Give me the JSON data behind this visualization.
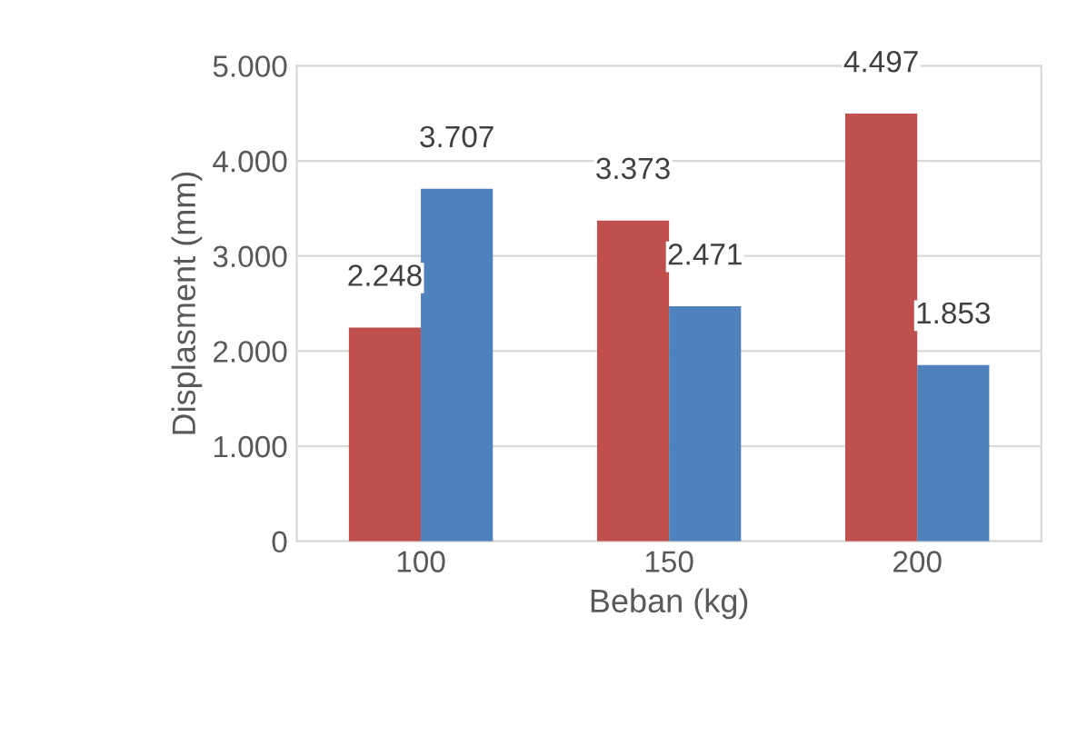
{
  "chart_data": {
    "type": "bar",
    "xlabel": "Beban (kg)",
    "ylabel": "Displasment (mm)",
    "categories": [
      "100",
      "150",
      "200"
    ],
    "series": [
      {
        "color": "#c0504d",
        "values": [
          2248,
          3373,
          4497
        ],
        "value_labels": [
          "2.248",
          "3.373",
          "4.497"
        ]
      },
      {
        "color": "#4f81bd",
        "values": [
          3707,
          2471,
          1853
        ],
        "value_labels": [
          "3.707",
          "2.471",
          "1.853"
        ]
      }
    ],
    "ylim": [
      0,
      5000
    ],
    "yticks": [
      0,
      {
        "value": 1000,
        "label": "1.000"
      },
      {
        "value": 2000,
        "label": "2.000"
      },
      {
        "value": 3000,
        "label": "3.000"
      },
      {
        "value": 4000,
        "label": "4.000"
      },
      {
        "value": 5000,
        "label": "5.000"
      }
    ],
    "grid": "y"
  }
}
